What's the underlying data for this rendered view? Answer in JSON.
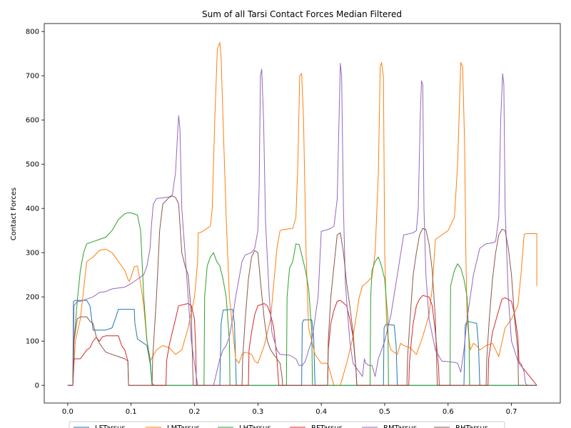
{
  "chart_data": {
    "type": "line",
    "title": "Sum of all Tarsi Contact Forces Median Filtered",
    "xlabel": "",
    "ylabel": "Contact Forces",
    "xlim": [
      -0.037,
      0.777
    ],
    "ylim": [
      -40,
      818
    ],
    "xticks": [
      "0.0",
      "0.1",
      "0.2",
      "0.3",
      "0.4",
      "0.5",
      "0.6",
      "0.7"
    ],
    "yticks": [
      "0",
      "100",
      "200",
      "300",
      "400",
      "500",
      "600",
      "700",
      "800"
    ],
    "grid": false,
    "legend": "bottom-center",
    "series": [
      {
        "name": "LFTarsus",
        "color": "#1f77b4",
        "x": [
          0,
          0.008,
          0.009,
          0.012,
          0.03,
          0.035,
          0.04,
          0.06,
          0.07,
          0.075,
          0.08,
          0.105,
          0.106,
          0.11,
          0.115,
          0.125,
          0.13,
          0.133,
          0.136,
          0.24,
          0.242,
          0.245,
          0.26,
          0.263,
          0.266,
          0.369,
          0.37,
          0.372,
          0.385,
          0.388,
          0.39,
          0.498,
          0.499,
          0.502,
          0.515,
          0.518,
          0.52,
          0.625,
          0.627,
          0.63,
          0.645,
          0.648,
          0.65,
          0.74
        ],
        "y": [
          0,
          0,
          190,
          192,
          192,
          180,
          125,
          125,
          130,
          150,
          172,
          172,
          140,
          105,
          100,
          90,
          50,
          5,
          0,
          0,
          140,
          170,
          172,
          140,
          0,
          0,
          140,
          148,
          148,
          110,
          0,
          0,
          130,
          138,
          136,
          90,
          0,
          0,
          135,
          145,
          140,
          90,
          0,
          0
        ]
      },
      {
        "name": "LMTarsus",
        "color": "#ff7f0e",
        "x": [
          0,
          0.008,
          0.012,
          0.02,
          0.03,
          0.04,
          0.05,
          0.06,
          0.07,
          0.08,
          0.09,
          0.095,
          0.097,
          0.1,
          0.105,
          0.11,
          0.115,
          0.12,
          0.125,
          0.13,
          0.14,
          0.15,
          0.16,
          0.17,
          0.18,
          0.19,
          0.2,
          0.205,
          0.206,
          0.21,
          0.215,
          0.225,
          0.228,
          0.232,
          0.236,
          0.24,
          0.242,
          0.245,
          0.25,
          0.255,
          0.26,
          0.265,
          0.27,
          0.275,
          0.28,
          0.29,
          0.295,
          0.3,
          0.31,
          0.32,
          0.33,
          0.335,
          0.34,
          0.355,
          0.36,
          0.363,
          0.366,
          0.369,
          0.372,
          0.376,
          0.38,
          0.385,
          0.39,
          0.395,
          0.4,
          0.41,
          0.42,
          0.425,
          0.43,
          0.44,
          0.45,
          0.46,
          0.465,
          0.47,
          0.48,
          0.485,
          0.49,
          0.493,
          0.495,
          0.498,
          0.5,
          0.503,
          0.506,
          0.51,
          0.52,
          0.525,
          0.53,
          0.54,
          0.55,
          0.56,
          0.57,
          0.575,
          0.58,
          0.585,
          0.59,
          0.6,
          0.61,
          0.615,
          0.62,
          0.623,
          0.626,
          0.628,
          0.63,
          0.635,
          0.64,
          0.645,
          0.65,
          0.66,
          0.67,
          0.68,
          0.69,
          0.7,
          0.71,
          0.715,
          0.72,
          0.725,
          0.74,
          0.74
        ],
        "y": [
          0,
          0,
          100,
          150,
          280,
          290,
          305,
          308,
          300,
          280,
          260,
          240,
          235,
          245,
          268,
          270,
          230,
          180,
          100,
          55,
          80,
          90,
          85,
          70,
          80,
          130,
          200,
          280,
          345,
          346,
          350,
          360,
          400,
          600,
          760,
          775,
          740,
          600,
          380,
          200,
          130,
          60,
          50,
          70,
          75,
          70,
          55,
          50,
          90,
          150,
          310,
          350,
          352,
          355,
          380,
          500,
          700,
          705,
          600,
          300,
          130,
          100,
          70,
          60,
          50,
          50,
          0,
          0,
          0,
          50,
          110,
          200,
          225,
          230,
          245,
          300,
          480,
          720,
          730,
          700,
          300,
          140,
          100,
          80,
          70,
          95,
          90,
          85,
          70,
          110,
          160,
          220,
          330,
          335,
          340,
          350,
          380,
          500,
          730,
          720,
          550,
          300,
          150,
          80,
          95,
          90,
          80,
          90,
          95,
          65,
          130,
          150,
          180,
          250,
          342,
          343,
          343,
          225
        ]
      },
      {
        "name": "LHTarsus",
        "color": "#2ca02c",
        "x": [
          0,
          0.008,
          0.01,
          0.015,
          0.02,
          0.025,
          0.03,
          0.05,
          0.06,
          0.07,
          0.08,
          0.09,
          0.095,
          0.1,
          0.11,
          0.115,
          0.12,
          0.125,
          0.13,
          0.132,
          0.133,
          0.215,
          0.216,
          0.22,
          0.225,
          0.23,
          0.235,
          0.24,
          0.245,
          0.25,
          0.255,
          0.256,
          0.345,
          0.346,
          0.35,
          0.355,
          0.36,
          0.365,
          0.37,
          0.375,
          0.38,
          0.385,
          0.386,
          0.477,
          0.478,
          0.48,
          0.485,
          0.49,
          0.495,
          0.5,
          0.505,
          0.506,
          0.603,
          0.604,
          0.61,
          0.615,
          0.62,
          0.625,
          0.63,
          0.633,
          0.634,
          0.74
        ],
        "y": [
          0,
          0,
          100,
          190,
          260,
          300,
          320,
          330,
          335,
          350,
          375,
          388,
          390,
          390,
          385,
          350,
          200,
          100,
          60,
          20,
          0,
          0,
          200,
          270,
          290,
          300,
          280,
          270,
          240,
          200,
          100,
          0,
          0,
          200,
          265,
          280,
          320,
          318,
          290,
          260,
          220,
          120,
          0,
          0,
          200,
          260,
          280,
          290,
          270,
          240,
          150,
          0,
          0,
          225,
          260,
          275,
          265,
          240,
          200,
          100,
          0,
          0
        ]
      },
      {
        "name": "RFTarsus",
        "color": "#d62728",
        "x": [
          0,
          0.008,
          0.01,
          0.02,
          0.025,
          0.03,
          0.035,
          0.04,
          0.045,
          0.05,
          0.055,
          0.06,
          0.08,
          0.085,
          0.09,
          0.095,
          0.096,
          0.155,
          0.156,
          0.16,
          0.165,
          0.17,
          0.175,
          0.19,
          0.195,
          0.2,
          0.202,
          0.203,
          0.285,
          0.286,
          0.29,
          0.295,
          0.3,
          0.31,
          0.315,
          0.32,
          0.325,
          0.33,
          0.332,
          0.333,
          0.41,
          0.411,
          0.415,
          0.42,
          0.425,
          0.43,
          0.44,
          0.445,
          0.45,
          0.455,
          0.456,
          0.538,
          0.539,
          0.542,
          0.545,
          0.55,
          0.555,
          0.56,
          0.57,
          0.575,
          0.58,
          0.585,
          0.586,
          0.663,
          0.664,
          0.67,
          0.68,
          0.685,
          0.69,
          0.7,
          0.705,
          0.71,
          0.712,
          0.74
        ],
        "y": [
          0,
          0,
          60,
          60,
          70,
          80,
          85,
          100,
          108,
          100,
          110,
          112,
          112,
          90,
          80,
          55,
          0,
          0,
          55,
          90,
          120,
          150,
          180,
          185,
          180,
          150,
          80,
          0,
          0,
          80,
          120,
          160,
          180,
          185,
          180,
          160,
          130,
          60,
          20,
          0,
          0,
          80,
          140,
          170,
          190,
          192,
          180,
          150,
          110,
          30,
          0,
          0,
          50,
          100,
          140,
          180,
          195,
          203,
          200,
          180,
          120,
          40,
          0,
          0,
          60,
          120,
          170,
          195,
          198,
          190,
          160,
          110,
          50,
          0
        ]
      },
      {
        "name": "RMTarsus",
        "color": "#9467bd",
        "x": [
          0,
          0.008,
          0.01,
          0.015,
          0.02,
          0.03,
          0.04,
          0.05,
          0.06,
          0.07,
          0.08,
          0.09,
          0.1,
          0.11,
          0.12,
          0.125,
          0.13,
          0.132,
          0.135,
          0.14,
          0.15,
          0.16,
          0.165,
          0.17,
          0.173,
          0.175,
          0.177,
          0.18,
          0.185,
          0.19,
          0.195,
          0.2,
          0.205,
          0.23,
          0.235,
          0.24,
          0.245,
          0.25,
          0.255,
          0.26,
          0.265,
          0.27,
          0.275,
          0.28,
          0.29,
          0.295,
          0.3,
          0.302,
          0.304,
          0.306,
          0.309,
          0.312,
          0.318,
          0.322,
          0.33,
          0.335,
          0.35,
          0.36,
          0.365,
          0.37,
          0.375,
          0.38,
          0.385,
          0.39,
          0.395,
          0.4,
          0.41,
          0.415,
          0.42,
          0.425,
          0.428,
          0.43,
          0.432,
          0.435,
          0.438,
          0.445,
          0.45,
          0.46,
          0.465,
          0.468,
          0.47,
          0.475,
          0.48,
          0.485,
          0.49,
          0.495,
          0.5,
          0.505,
          0.51,
          0.52,
          0.53,
          0.545,
          0.55,
          0.553,
          0.556,
          0.558,
          0.56,
          0.562,
          0.565,
          0.57,
          0.58,
          0.59,
          0.61,
          0.615,
          0.62,
          0.625,
          0.63,
          0.635,
          0.64,
          0.645,
          0.65,
          0.66,
          0.67,
          0.675,
          0.68,
          0.683,
          0.686,
          0.688,
          0.69,
          0.695,
          0.7,
          0.71,
          0.715,
          0.72,
          0.722,
          0.725,
          0.74
        ],
        "y": [
          0,
          0,
          180,
          190,
          190,
          195,
          200,
          210,
          212,
          218,
          220,
          222,
          230,
          240,
          250,
          270,
          310,
          360,
          410,
          422,
          424,
          426,
          430,
          480,
          560,
          610,
          580,
          400,
          300,
          200,
          100,
          50,
          0,
          0,
          30,
          60,
          80,
          90,
          110,
          150,
          200,
          240,
          280,
          295,
          300,
          310,
          350,
          450,
          700,
          715,
          600,
          370,
          200,
          120,
          80,
          70,
          68,
          60,
          45,
          45,
          55,
          80,
          100,
          150,
          200,
          348,
          352,
          355,
          360,
          420,
          600,
          728,
          700,
          400,
          230,
          100,
          50,
          30,
          20,
          60,
          50,
          45,
          45,
          20,
          60,
          80,
          100,
          130,
          160,
          250,
          340,
          345,
          350,
          400,
          600,
          688,
          680,
          400,
          250,
          150,
          80,
          55,
          52,
          50,
          30,
          80,
          150,
          200,
          250,
          280,
          310,
          320,
          322,
          325,
          380,
          600,
          705,
          680,
          400,
          200,
          100,
          55,
          50,
          30,
          5,
          0,
          0
        ]
      },
      {
        "name": "RHTarsus",
        "color": "#8c564b",
        "x": [
          0,
          0.008,
          0.01,
          0.015,
          0.02,
          0.025,
          0.03,
          0.035,
          0.04,
          0.045,
          0.05,
          0.055,
          0.06,
          0.07,
          0.08,
          0.09,
          0.095,
          0.096,
          0.133,
          0.134,
          0.14,
          0.145,
          0.15,
          0.16,
          0.165,
          0.17,
          0.175,
          0.18,
          0.185,
          0.19,
          0.195,
          0.197,
          0.198,
          0.275,
          0.276,
          0.28,
          0.285,
          0.29,
          0.295,
          0.3,
          0.305,
          0.31,
          0.315,
          0.32,
          0.325,
          0.33,
          0.335,
          0.338,
          0.339,
          0.41,
          0.411,
          0.415,
          0.42,
          0.425,
          0.43,
          0.435,
          0.44,
          0.445,
          0.45,
          0.455,
          0.456,
          0.535,
          0.536,
          0.54,
          0.545,
          0.55,
          0.555,
          0.56,
          0.565,
          0.57,
          0.575,
          0.58,
          0.582,
          0.583,
          0.66,
          0.661,
          0.665,
          0.67,
          0.675,
          0.68,
          0.685,
          0.69,
          0.695,
          0.7,
          0.705,
          0.71,
          0.711,
          0.74
        ],
        "y": [
          0,
          0,
          100,
          150,
          155,
          155,
          155,
          145,
          140,
          110,
          95,
          85,
          75,
          70,
          65,
          60,
          55,
          0,
          0,
          60,
          200,
          350,
          410,
          425,
          428,
          425,
          410,
          300,
          270,
          250,
          160,
          50,
          0,
          0,
          60,
          150,
          240,
          290,
          305,
          300,
          220,
          150,
          100,
          80,
          70,
          60,
          50,
          20,
          0,
          0,
          100,
          200,
          270,
          340,
          345,
          300,
          230,
          180,
          120,
          30,
          0,
          0,
          60,
          150,
          250,
          300,
          340,
          355,
          352,
          320,
          260,
          150,
          50,
          0,
          0,
          60,
          150,
          240,
          300,
          340,
          353,
          350,
          310,
          250,
          150,
          80,
          0,
          0
        ]
      }
    ]
  }
}
